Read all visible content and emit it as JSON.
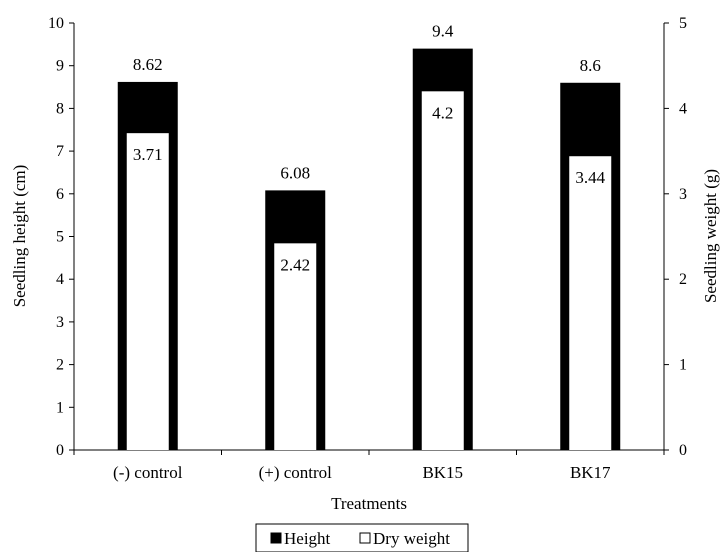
{
  "chart_data": {
    "type": "bar",
    "title": "",
    "xlabel": "Treatments",
    "ylabel": "Seedling height (cm)",
    "y2label": "Seedling weight (g)",
    "categories": [
      "(-) control",
      "(+) control",
      "BK15",
      "BK17"
    ],
    "ylim": [
      0,
      10
    ],
    "y2lim": [
      0,
      5
    ],
    "yticks": [
      "0",
      "1",
      "2",
      "3",
      "4",
      "5",
      "6",
      "7",
      "8",
      "9",
      "10"
    ],
    "y2ticks": [
      "0",
      "1",
      "2",
      "3",
      "4",
      "5"
    ],
    "series": [
      {
        "name": "Height",
        "axis": "left",
        "color": "#000000",
        "values": [
          8.62,
          6.08,
          9.4,
          8.6
        ],
        "labels": [
          "8.62",
          "6.08",
          "9.4",
          "8.6"
        ]
      },
      {
        "name": "Dry weight",
        "axis": "right",
        "color": "#ffffff",
        "values": [
          3.71,
          2.42,
          4.2,
          3.44
        ],
        "labels": [
          "3.71",
          "2.42",
          "4.2",
          "3.44"
        ]
      }
    ],
    "legend": "bottom",
    "grid": false
  }
}
